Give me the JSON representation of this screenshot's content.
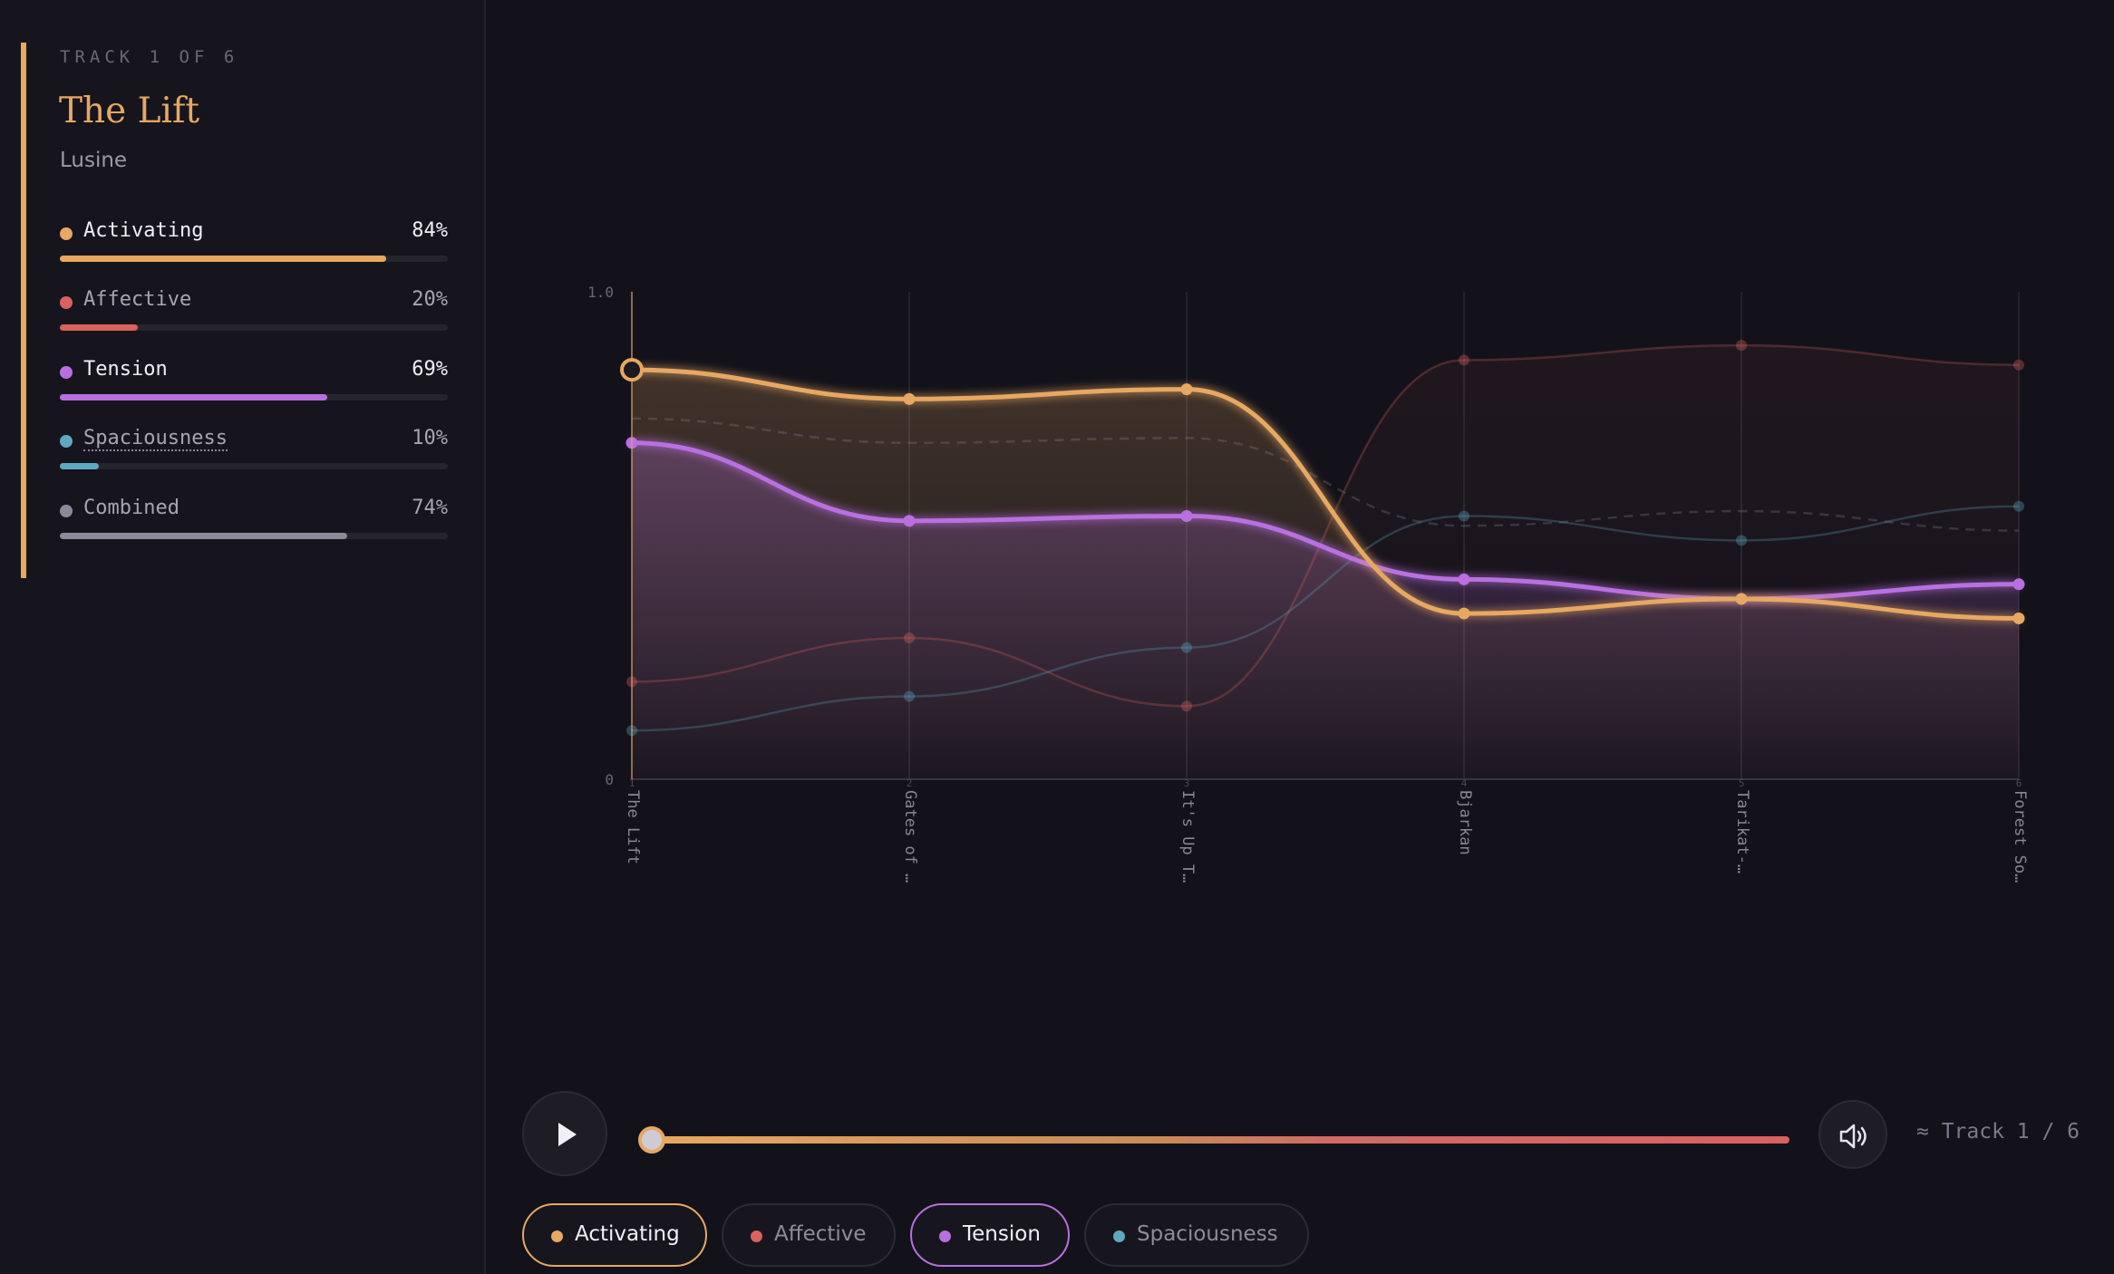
{
  "sidebar": {
    "track_count": "TRACK 1 OF 6",
    "title": "The Lift",
    "artist": "Lusine",
    "metrics": [
      {
        "label": "Activating",
        "value_text": "84%",
        "value": 0.84,
        "color": "#e7a862",
        "active": true
      },
      {
        "label": "Affective",
        "value_text": "20%",
        "value": 0.2,
        "color": "#d9615e",
        "active": false
      },
      {
        "label": "Tension",
        "value_text": "69%",
        "value": 0.69,
        "color": "#b96fe0",
        "active": true
      },
      {
        "label": "Spaciousness",
        "value_text": "10%",
        "value": 0.1,
        "color": "#5fa8c2",
        "active": false
      },
      {
        "label": "Combined",
        "value_text": "74%",
        "value": 0.74,
        "color": "#8d8998",
        "active": false
      }
    ]
  },
  "chart_data": {
    "type": "line",
    "y_tick_labels": [
      "0",
      "1.0"
    ],
    "ylim": [
      0,
      1
    ],
    "x_numbers": [
      "1",
      "2",
      "3",
      "4",
      "5",
      "6"
    ],
    "x_labels": [
      "The Lift",
      "Gates of …",
      "It's Up T…",
      "Bjarkan",
      "Tarikat-…",
      "Forest So…"
    ],
    "series": [
      {
        "key": "activating",
        "color": "#e7a862",
        "emphasis": true,
        "values": [
          0.84,
          0.78,
          0.8,
          0.34,
          0.37,
          0.33
        ]
      },
      {
        "key": "tension",
        "color": "#b96fe0",
        "emphasis": true,
        "values": [
          0.69,
          0.53,
          0.54,
          0.41,
          0.37,
          0.4
        ]
      },
      {
        "key": "affective",
        "color": "#d9615e",
        "emphasis": false,
        "values": [
          0.2,
          0.29,
          0.15,
          0.86,
          0.89,
          0.85
        ]
      },
      {
        "key": "spaciousness",
        "color": "#5fa8c2",
        "emphasis": false,
        "values": [
          0.1,
          0.17,
          0.27,
          0.54,
          0.49,
          0.56
        ]
      },
      {
        "key": "combined",
        "color": "#8d8998",
        "emphasis": false,
        "dashed": true,
        "values": [
          0.74,
          0.69,
          0.7,
          0.52,
          0.55,
          0.51
        ]
      }
    ],
    "selected_index": 0
  },
  "player": {
    "track_indicator": "≈ Track 1 / 6",
    "progress": 0.0
  },
  "chips": [
    {
      "label": "Activating",
      "color": "#e7a862",
      "on": true
    },
    {
      "label": "Affective",
      "color": "#d9615e",
      "on": false
    },
    {
      "label": "Tension",
      "color": "#b96fe0",
      "on": true
    },
    {
      "label": "Spaciousness",
      "color": "#5fa8c2",
      "on": false
    }
  ]
}
